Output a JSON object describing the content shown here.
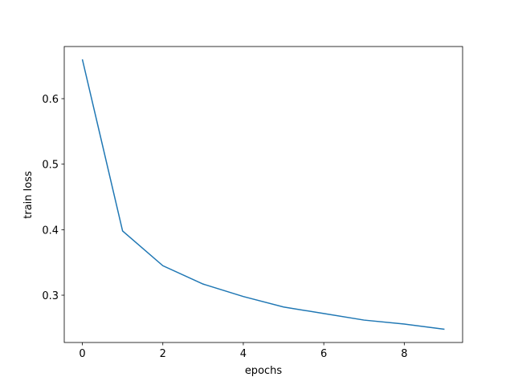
{
  "chart_data": {
    "type": "line",
    "x_label": "epochs",
    "y_label": "train loss",
    "x": [
      0,
      1,
      2,
      3,
      4,
      5,
      6,
      7,
      8,
      9
    ],
    "series": [
      {
        "name": "train loss",
        "color": "#1f77b4",
        "values": [
          0.66,
          0.398,
          0.345,
          0.317,
          0.298,
          0.282,
          0.272,
          0.262,
          0.256,
          0.248
        ]
      }
    ],
    "xlim": [
      -0.45,
      9.45
    ],
    "ylim": [
      0.2278,
      0.6796
    ],
    "xticks": [
      0,
      2,
      4,
      6,
      8
    ],
    "yticks": [
      0.3,
      0.4,
      0.5,
      0.6
    ],
    "grid": false
  }
}
